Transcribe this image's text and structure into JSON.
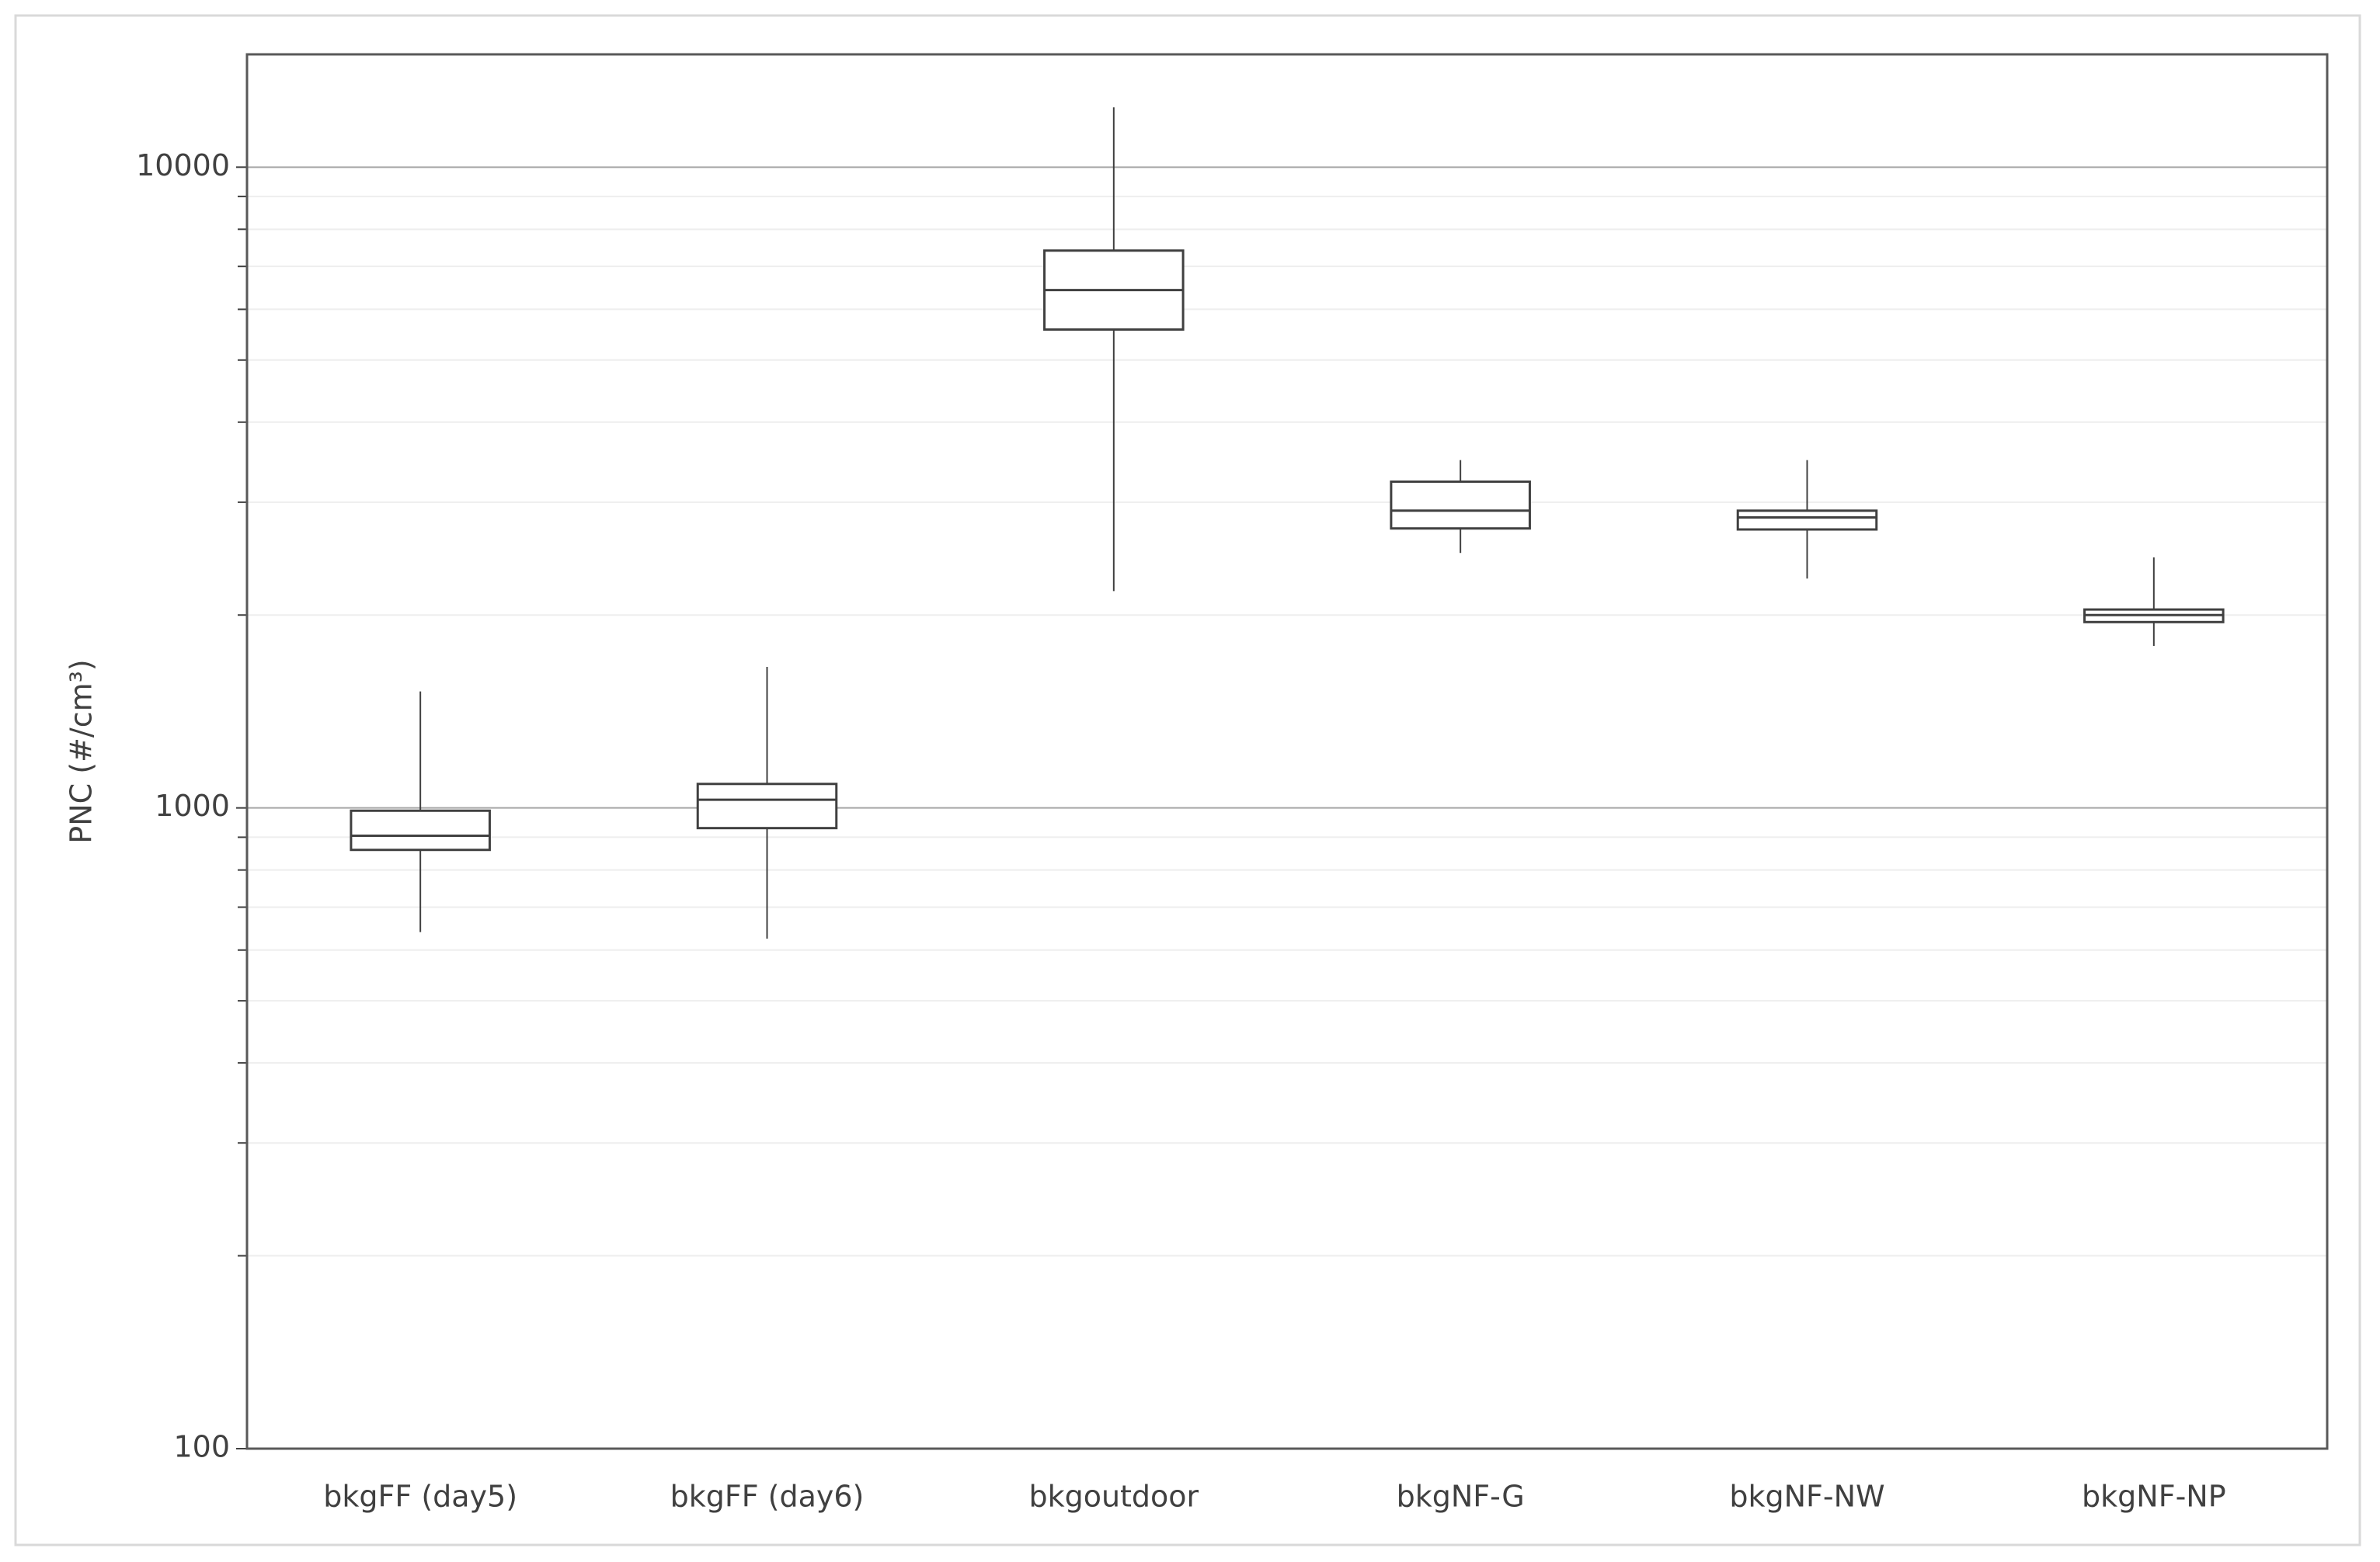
{
  "chart_data": {
    "type": "box",
    "y_label": "PNC (#/cm³)",
    "categories": [
      "bkgFF (day5)",
      "bkgFF (day6)",
      "bkgoutdoor",
      "bkgNF-G",
      "bkgNF-NW",
      "bkgNF-NP"
    ],
    "min": [
      640,
      625,
      2180,
      2500,
      2280,
      1790
    ],
    "q1": [
      860,
      930,
      5580,
      2730,
      2720,
      1950
    ],
    "median": [
      905,
      1030,
      6430,
      2910,
      2840,
      2000
    ],
    "q3": [
      990,
      1090,
      7410,
      3230,
      2910,
      2040
    ],
    "max": [
      1520,
      1660,
      12400,
      3490,
      3490,
      2460
    ],
    "color": "#404040",
    "log_y": true,
    "ylim": [
      100,
      15000
    ],
    "yticks": [
      100,
      1000,
      10000
    ],
    "yminorticks": [
      200,
      300,
      400,
      500,
      600,
      700,
      800,
      900,
      2000,
      3000,
      4000,
      5000,
      6000,
      7000,
      8000,
      9000
    ],
    "grid": true
  }
}
